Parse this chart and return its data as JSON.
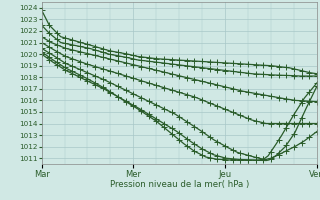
{
  "background_color": "#d0e8e4",
  "grid_color": "#a8c8c8",
  "line_color": "#2a5c2a",
  "xlabel": "Pression niveau de la mer( hPa )",
  "xtick_labels": [
    "Mar",
    "Mer",
    "Jeu",
    "Ven"
  ],
  "xtick_positions": [
    0,
    96,
    192,
    288
  ],
  "ylim": [
    1010.5,
    1024.5
  ],
  "yticks": [
    1011,
    1012,
    1013,
    1014,
    1015,
    1016,
    1017,
    1018,
    1019,
    1020,
    1021,
    1022,
    1023,
    1024
  ],
  "total_points": 289,
  "marker_every": 8,
  "marker_size": 4,
  "linewidth": 0.9
}
